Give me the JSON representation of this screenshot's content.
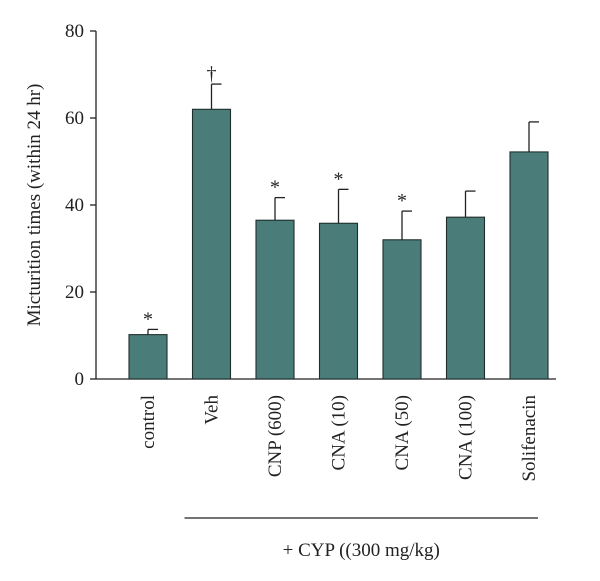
{
  "chart_data": {
    "type": "bar",
    "categories": [
      "control",
      "Veh",
      "CNP (600)",
      "CNA (10)",
      "CNA (50)",
      "CNA (100)",
      "Solifenacin"
    ],
    "values": [
      10.2,
      62.0,
      36.5,
      35.8,
      32.0,
      37.2,
      52.2
    ],
    "errors": [
      1.2,
      5.8,
      5.2,
      7.8,
      6.6,
      6.0,
      6.9
    ],
    "markers": [
      "*",
      "†",
      "*",
      "*",
      "*",
      "",
      ""
    ],
    "ylabel": "Micturition times (within 24 hr)",
    "xlabel": "",
    "ylim": [
      0,
      80
    ],
    "yticks": [
      0,
      20,
      40,
      60,
      80
    ],
    "bar_color": "#4a7d7a",
    "group": {
      "label": "+ CYP ((300 mg/kg)",
      "from_category": "Veh",
      "to_category": "Solifenacin"
    },
    "grid": false,
    "legend": "none"
  }
}
